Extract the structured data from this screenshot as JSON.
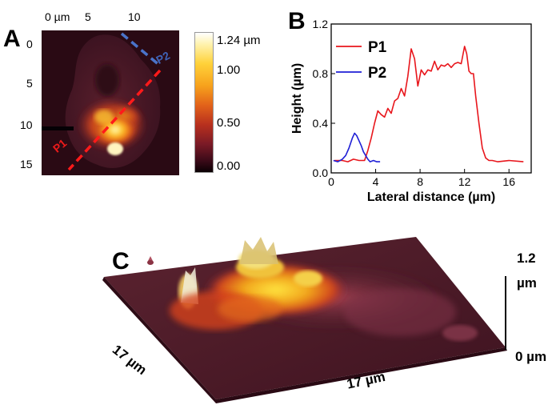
{
  "panels": {
    "a": "A",
    "b": "B",
    "c": "C"
  },
  "panel_a": {
    "x_ticks": [
      "0 µm",
      "5",
      "10"
    ],
    "y_ticks": [
      "0",
      "5",
      "10",
      "15"
    ],
    "colorbar_ticks": [
      "1.24 µm",
      "1.00",
      "0.50",
      "0.00"
    ],
    "line_labels": [
      "P1",
      "P2"
    ],
    "colors": {
      "p1_line": "#ff1a1a",
      "p2_line": "#4a73c9"
    }
  },
  "panel_c": {
    "z_top": "1.2",
    "z_top_unit": "µm",
    "z_bottom": "0 µm",
    "left_axis": "17 µm",
    "bottom_axis": "17 µm"
  },
  "chart_data": {
    "type": "line",
    "xlabel": "Lateral distance (µm)",
    "ylabel": "Height (µm)",
    "xlim": [
      0,
      18
    ],
    "ylim": [
      0,
      1.2
    ],
    "x_ticks": [
      0,
      4,
      8,
      12,
      16
    ],
    "x_tick_labels": [
      "0",
      "4",
      "8",
      "12",
      "16"
    ],
    "y_ticks": [
      0,
      0.4,
      0.8,
      1.2
    ],
    "y_tick_labels": [
      "0.0",
      "0.4",
      "0.8",
      "1.2"
    ],
    "legend_position": "top-left",
    "series": [
      {
        "name": "P1",
        "color": "#e8161c",
        "x": [
          0.3,
          1.0,
          1.5,
          2.0,
          2.5,
          3.0,
          3.3,
          3.6,
          3.9,
          4.2,
          4.5,
          4.8,
          5.1,
          5.4,
          5.7,
          6.0,
          6.3,
          6.6,
          6.9,
          7.2,
          7.5,
          7.8,
          8.1,
          8.4,
          8.7,
          9.0,
          9.3,
          9.6,
          9.9,
          10.2,
          10.5,
          10.8,
          11.1,
          11.4,
          11.7,
          12.0,
          12.2,
          12.4,
          12.6,
          12.8,
          13.0,
          13.3,
          13.6,
          13.9,
          14.2,
          14.5,
          15.0,
          16.0,
          17.3
        ],
        "y": [
          0.1,
          0.1,
          0.09,
          0.11,
          0.1,
          0.1,
          0.18,
          0.28,
          0.4,
          0.5,
          0.47,
          0.45,
          0.52,
          0.48,
          0.58,
          0.6,
          0.68,
          0.62,
          0.78,
          1.0,
          0.92,
          0.7,
          0.83,
          0.79,
          0.83,
          0.82,
          0.9,
          0.83,
          0.87,
          0.86,
          0.88,
          0.85,
          0.88,
          0.89,
          0.88,
          1.02,
          0.96,
          0.82,
          0.8,
          0.8,
          0.62,
          0.4,
          0.2,
          0.12,
          0.1,
          0.1,
          0.09,
          0.1,
          0.09
        ]
      },
      {
        "name": "P2",
        "color": "#1f1fd6",
        "x": [
          0.2,
          0.6,
          1.0,
          1.3,
          1.6,
          1.9,
          2.1,
          2.3,
          2.5,
          2.7,
          2.9,
          3.1,
          3.3,
          3.5,
          3.8,
          4.1,
          4.4
        ],
        "y": [
          0.1,
          0.09,
          0.11,
          0.14,
          0.2,
          0.28,
          0.32,
          0.3,
          0.26,
          0.22,
          0.17,
          0.14,
          0.11,
          0.09,
          0.1,
          0.09,
          0.09
        ]
      }
    ]
  }
}
